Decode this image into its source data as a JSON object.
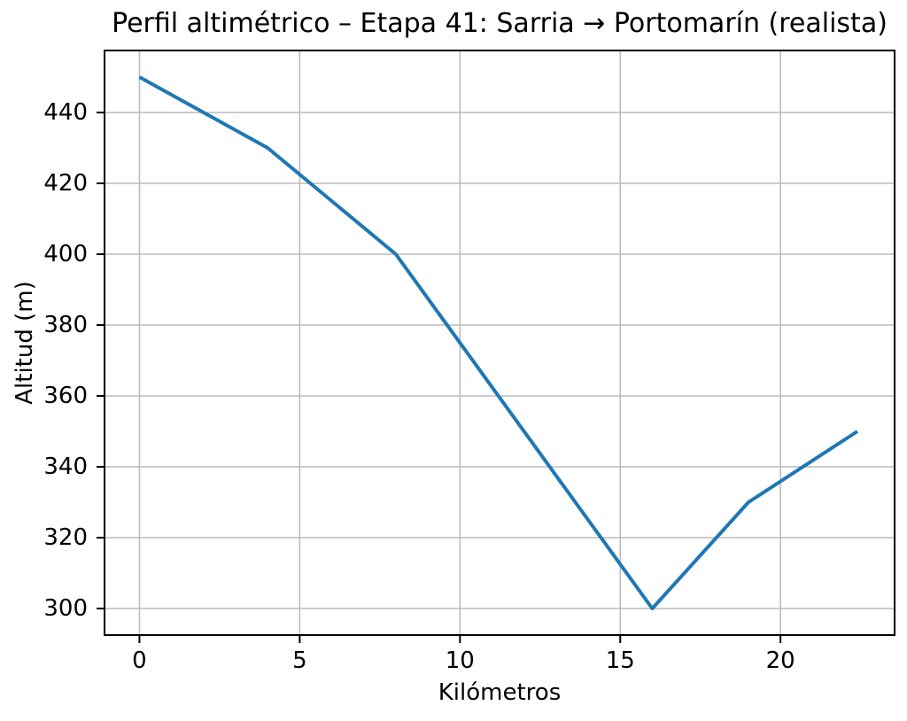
{
  "chart_data": {
    "type": "line",
    "title": "Perfil altimétrico – Etapa 41: Sarria → Portomarín (realista)",
    "xlabel": "Kilómetros",
    "ylabel": "Altitud (m)",
    "x": [
      0,
      4,
      8,
      16,
      19,
      22.4
    ],
    "y": [
      450,
      430,
      400,
      300,
      330,
      350
    ],
    "series": [
      {
        "name": "Altitud",
        "x": [
          0,
          4,
          8,
          16,
          19,
          22.4
        ],
        "values": [
          450,
          430,
          400,
          300,
          330,
          350
        ]
      }
    ],
    "xticks": [
      0,
      5,
      10,
      15,
      20
    ],
    "yticks": [
      300,
      320,
      340,
      360,
      380,
      400,
      420,
      440
    ],
    "xlim": [
      -1.09,
      23.56
    ],
    "ylim": [
      292.5,
      457.5
    ],
    "grid": true,
    "legend": "none",
    "line_color": "#1f77b4",
    "line_width": 4,
    "grid_color": "#bcbcbc",
    "spine_color": "#000000",
    "tick_color": "#000000",
    "text_color": "#000000",
    "background_color": "#ffffff"
  }
}
